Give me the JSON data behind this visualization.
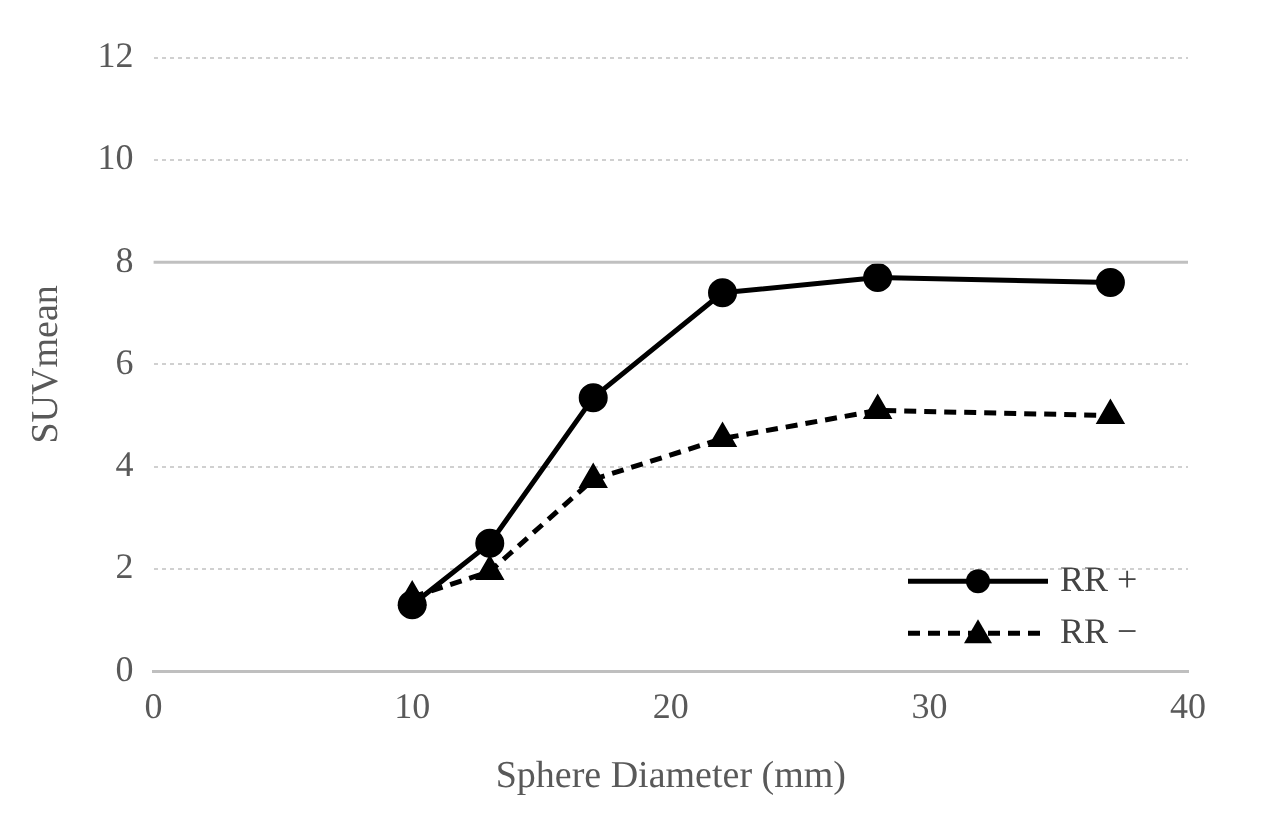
{
  "chart_data": {
    "type": "line",
    "xlabel": "Sphere Diameter (mm)",
    "ylabel": "SUVmean",
    "xlim": [
      0,
      40
    ],
    "xticks": [
      0,
      10,
      20,
      30,
      40
    ],
    "ylim": [
      0,
      12
    ],
    "yticks": [
      0,
      2,
      4,
      6,
      8,
      10,
      12
    ],
    "grid": "y",
    "legend": "bottom right",
    "x": [
      10,
      13,
      17,
      22,
      28,
      37
    ],
    "series": [
      {
        "name": "RR +",
        "color": "#000000",
        "marker": "circle",
        "line_style": "solid",
        "values": [
          1.3,
          2.5,
          5.35,
          7.4,
          7.7,
          7.6
        ]
      },
      {
        "name": "RR −",
        "color": "#000000",
        "marker": "triangle",
        "line_style": "dashed",
        "values": [
          1.45,
          1.95,
          3.75,
          4.55,
          5.1,
          5.0
        ]
      }
    ],
    "ref_lines": [
      {
        "axis": "y",
        "value": 8,
        "color": "#c0c0c0"
      }
    ]
  }
}
